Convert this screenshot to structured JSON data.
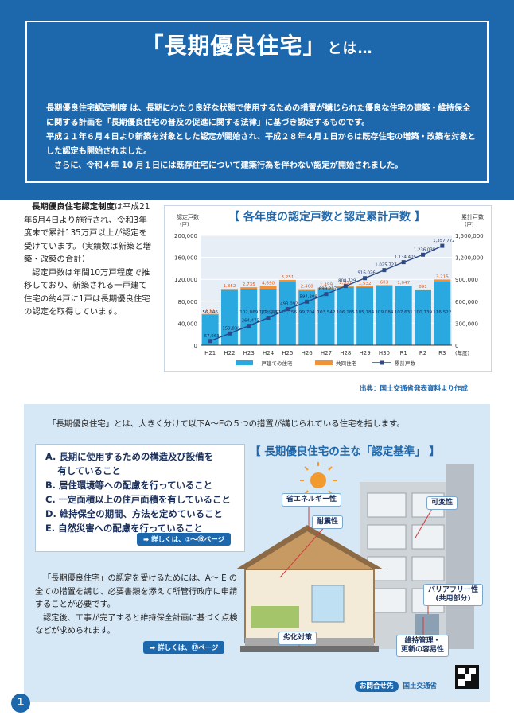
{
  "header": {
    "title": "「長期優良住宅」",
    "title_suffix": "とは…",
    "intro_1": "長期優良住宅認定制度 は、長期にわたり良好な状態で使用するための措置が講じられた優良な住宅の建築・維持保全に関する計画を「長期優良住宅の普及の促進に関する法律」に基づき認定するものです。",
    "intro_2": "平成２１年６月４日より新築を対象とした認定が開始され、平成２８年４月１日からは既存住宅の増築・改築を対象とした認定も開始されました。",
    "intro_3": "さらに、令和４年 10 月１日には既存住宅について建築行為を伴わない認定が開始されました。"
  },
  "description": {
    "p1_bold": "長期優良住宅認定制度",
    "p1": "は平成21年6月4日より施行され、令和3年度末で累計135万戸以上が認定を受けています。（実績数は新築と増築・改築の合計）",
    "p2": "認定戸数は年間10万戸程度で推移しており、新築される一戸建て住宅の約4戸に1戸は長期優良住宅の認定を取得しています。"
  },
  "chart_data": {
    "type": "bar",
    "title": "【 各年度の認定戸数と認定累計戸数 】",
    "ylabel_left": "認定戸数",
    "ylabel_left_unit": "(戸)",
    "ylabel_right": "累計戸数",
    "ylabel_right_unit": "(戸)",
    "xlabel": "(年度)",
    "categories": [
      "H21",
      "H22",
      "H23",
      "H24",
      "H25",
      "H26",
      "H27",
      "H28",
      "H29",
      "H30",
      "R1",
      "R2",
      "R3"
    ],
    "left_ticks": [
      "0",
      "40,000",
      "80,000",
      "120,000",
      "160,000",
      "200,000"
    ],
    "right_ticks": [
      "0",
      "300,000",
      "600,000",
      "900,000",
      "1,200,000",
      "1,500,000"
    ],
    "ylim_left": [
      0,
      200000
    ],
    "ylim_right": [
      0,
      1500000
    ],
    "series": [
      {
        "name": "一戸建ての住宅",
        "color": "#29a9e0",
        "values": [
          56146,
          100798,
          102869,
          102925,
          115756,
          99704,
          103542,
          106185,
          105784,
          109084,
          107631,
          100739,
          116522
        ],
        "labels": [
          "56,146",
          "",
          "102,869",
          "102,925",
          "115,756",
          "99,704",
          "103,542",
          "106,185",
          "105,784",
          "109,084",
          "107,631",
          "100,739",
          "116,522"
        ]
      },
      {
        "name": "共同住宅",
        "color": "#f0923a",
        "values": [
          917,
          1852,
          2735,
          4690,
          3251,
          2408,
          1459,
          2331,
          1532,
          603,
          1047,
          891,
          3215
        ],
        "labels": [
          "917",
          "1,852",
          "2,735",
          "4,690",
          "3,251",
          "2,408",
          "1,459",
          "2,331",
          "1,532",
          "603",
          "1,047",
          "891",
          "3,215"
        ]
      },
      {
        "name": "累計戸数",
        "color": "#2a4a8a",
        "values": [
          57063,
          159836,
          264475,
          374398,
          493092,
          594208,
          699217,
          808729,
          916026,
          1025727,
          1134405,
          1236035,
          1357772
        ],
        "labels": [
          "57,063",
          "159,836",
          "264,475",
          "374,398",
          "493,092",
          "594,208",
          "699,217",
          "808,729",
          "916,026",
          "1,025,727",
          "1,134,405",
          "1,236,035",
          "1,357,772"
        ]
      }
    ],
    "legend_position": "bottom",
    "grid": true
  },
  "source": "出典：国土交通省発表資料より作成",
  "lower": {
    "lead": "「長期優良住宅」とは、大きく分けて以下A～Eの５つの措置が講じられている住宅を指します。",
    "criteria_title": "【 長期優良住宅の主な「認定基準」 】",
    "measures": [
      "A. 長期に使用するための構造及び設備を",
      "　  有していること",
      "B. 居住環境等への配慮を行っていること",
      "C. 一定面積以上の住戸面積を有していること",
      "D. 維持保全の期間、方法を定めていること",
      "E. 自然災害への配慮を行っていること"
    ],
    "measures_more": "➡ 詳しくは、③～⑯ページ",
    "desc_1": "「長期優良住宅」の認定を受けるためには、A～ E の全ての措置を講じ、必要書類を添えて所管行政庁に申請することが必要です。",
    "desc_2": "認定後、工事が完了すると維持保全計画に基づく点検などが求められます。",
    "desc_more": "➡ 詳しくは、⑰ページ",
    "labels": {
      "energy": "省エネルギー性",
      "durability": "耐震性",
      "variability": "可変性",
      "barrier_free": "バリアフリー性\n(共用部分)",
      "deterioration": "劣化対策",
      "maintenance": "維持管理・\n更新の容易性"
    },
    "contact_key": "お問合せ先",
    "contact_value": "国土交通省"
  },
  "page_number": "1"
}
